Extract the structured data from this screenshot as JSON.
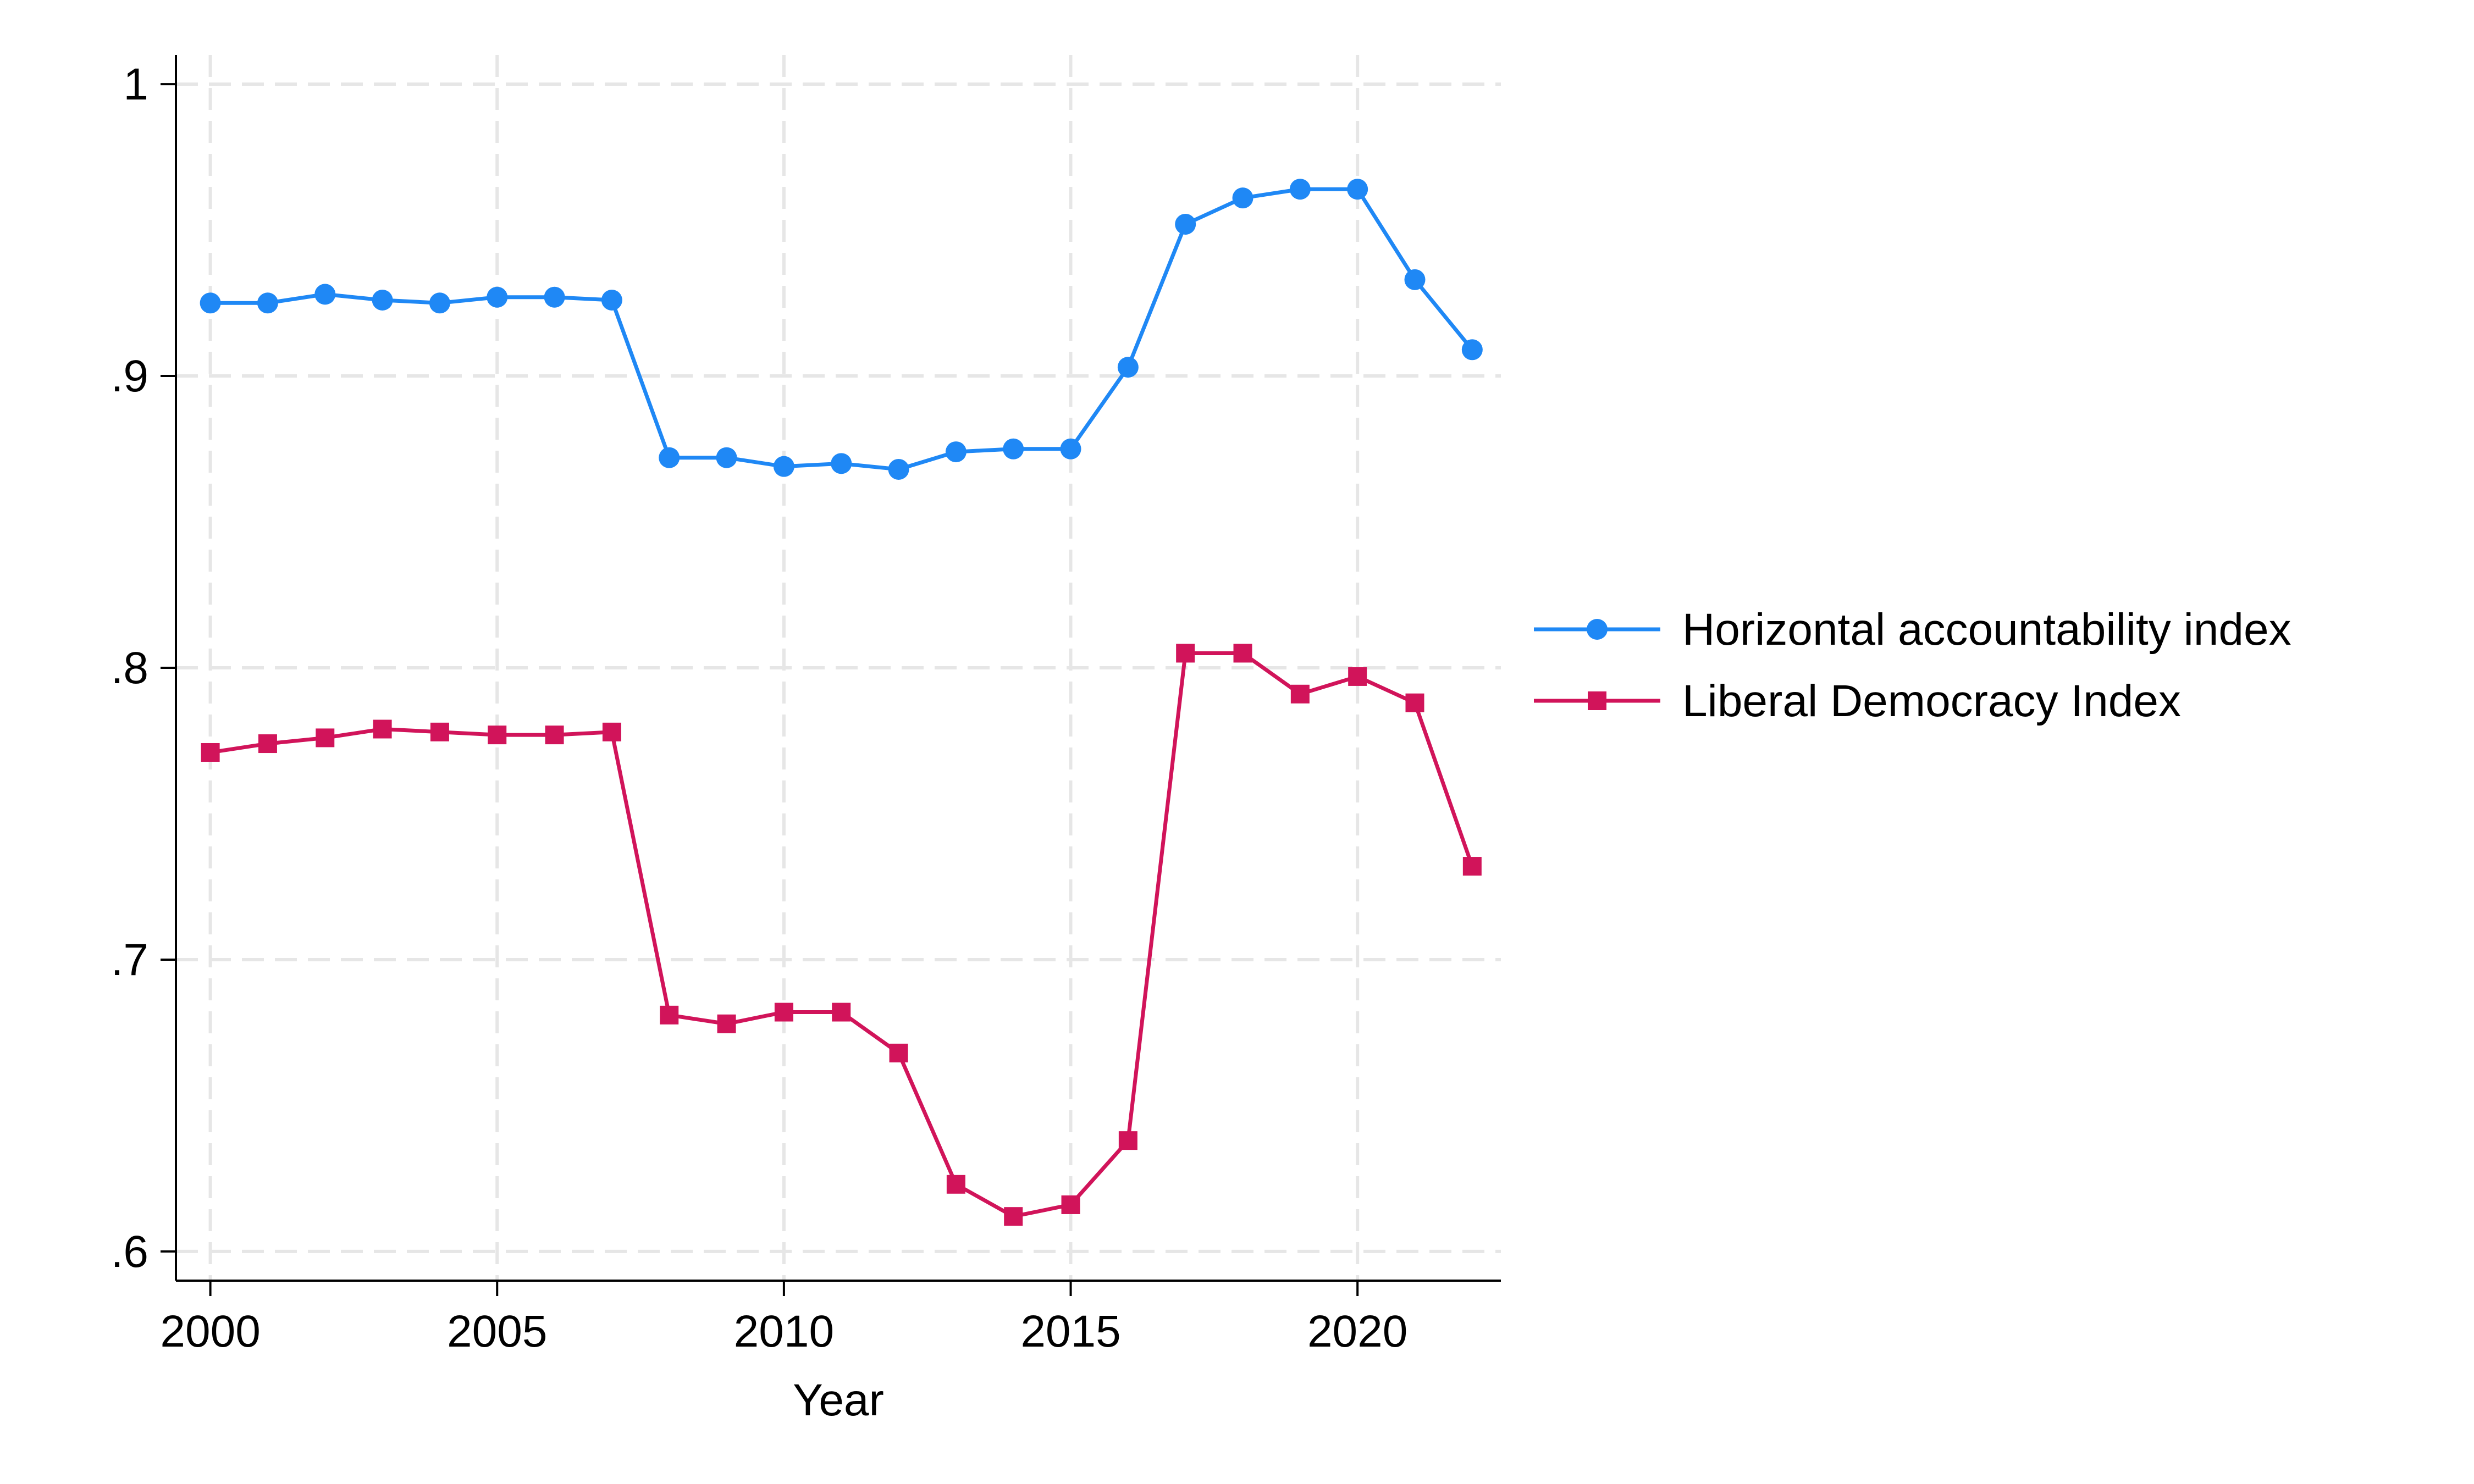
{
  "chart_data": {
    "type": "line",
    "xlabel": "Year",
    "ylabel": "",
    "xlim": [
      1999.4,
      2022.5
    ],
    "ylim": [
      0.59,
      1.01
    ],
    "x_ticks": [
      2000,
      2005,
      2010,
      2015,
      2020
    ],
    "x_tick_labels": [
      "2000",
      "2005",
      "2010",
      "2015",
      "2020"
    ],
    "y_ticks": [
      0.6,
      0.7,
      0.8,
      0.9,
      1.0
    ],
    "y_tick_labels": [
      ".6",
      ".7",
      ".8",
      ".9",
      "1"
    ],
    "grid": true,
    "legend_position": "right",
    "x": [
      2000,
      2001,
      2002,
      2003,
      2004,
      2005,
      2006,
      2007,
      2008,
      2009,
      2010,
      2011,
      2012,
      2013,
      2014,
      2015,
      2016,
      2017,
      2018,
      2019,
      2020,
      2021,
      2022
    ],
    "series": [
      {
        "name": "Horizontal accountability index",
        "color": "#1f88f5",
        "marker": "circle",
        "values": [
          0.925,
          0.925,
          0.928,
          0.926,
          0.925,
          0.927,
          0.927,
          0.926,
          0.872,
          0.872,
          0.869,
          0.87,
          0.868,
          0.874,
          0.875,
          0.875,
          0.903,
          0.952,
          0.961,
          0.964,
          0.964,
          0.933,
          0.909
        ]
      },
      {
        "name": "Liberal Democracy Index",
        "color": "#d1145a",
        "marker": "square",
        "values": [
          0.771,
          0.774,
          0.776,
          0.779,
          0.778,
          0.777,
          0.777,
          0.778,
          0.681,
          0.678,
          0.682,
          0.682,
          0.668,
          0.623,
          0.612,
          0.616,
          0.638,
          0.805,
          0.805,
          0.791,
          0.797,
          0.788,
          0.732
        ]
      }
    ]
  }
}
